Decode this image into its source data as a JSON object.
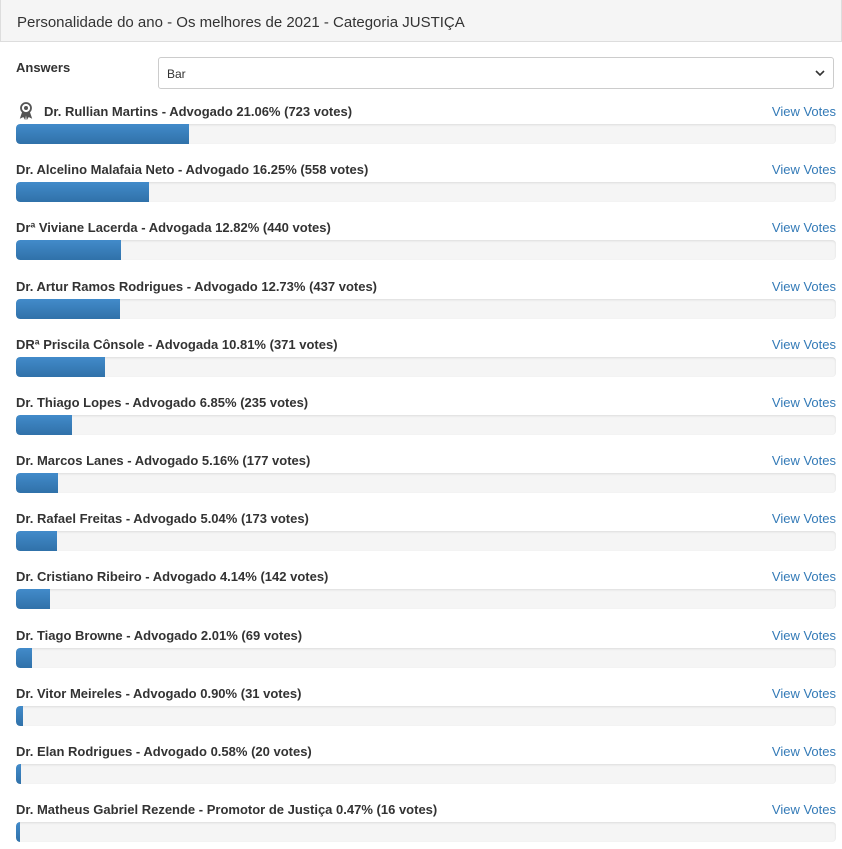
{
  "header": {
    "title": "Personalidade do ano - Os melhores de 2021 - Categoria JUSTIÇA"
  },
  "answers": {
    "label": "Answers",
    "selected": "Bar"
  },
  "items": [
    {
      "name": "Dr. Rullian Martins - Advogado",
      "percent": 21.06,
      "percent_label": "21.06%",
      "votes": "(723 votes)",
      "link": "View Votes"
    },
    {
      "name": "Dr. Alcelino Malafaia Neto - Advogado",
      "percent": 16.25,
      "percent_label": "16.25%",
      "votes": "(558 votes)",
      "link": "View Votes"
    },
    {
      "name": "Drª Viviane Lacerda - Advogada",
      "percent": 12.82,
      "percent_label": "12.82%",
      "votes": "(440 votes)",
      "link": "View Votes"
    },
    {
      "name": "Dr. Artur Ramos Rodrigues - Advogado",
      "percent": 12.73,
      "percent_label": "12.73%",
      "votes": "(437 votes)",
      "link": "View Votes"
    },
    {
      "name": "DRª Priscila Cônsole - Advogada",
      "percent": 10.81,
      "percent_label": "10.81%",
      "votes": "(371 votes)",
      "link": "View Votes"
    },
    {
      "name": "Dr. Thiago Lopes - Advogado",
      "percent": 6.85,
      "percent_label": "6.85%",
      "votes": "(235 votes)",
      "link": "View Votes"
    },
    {
      "name": "Dr. Marcos Lanes - Advogado",
      "percent": 5.16,
      "percent_label": "5.16%",
      "votes": "(177 votes)",
      "link": "View Votes"
    },
    {
      "name": "Dr. Rafael Freitas - Advogado",
      "percent": 5.04,
      "percent_label": "5.04%",
      "votes": "(173 votes)",
      "link": "View Votes"
    },
    {
      "name": "Dr. Cristiano Ribeiro - Advogado",
      "percent": 4.14,
      "percent_label": "4.14%",
      "votes": "(142 votes)",
      "link": "View Votes"
    },
    {
      "name": "Dr. Tiago Browne - Advogado",
      "percent": 2.01,
      "percent_label": "2.01%",
      "votes": "(69 votes)",
      "link": "View Votes"
    },
    {
      "name": "Dr. Vitor Meireles - Advogado",
      "percent": 0.9,
      "percent_label": "0.90%",
      "votes": "(31 votes)",
      "link": "View Votes"
    },
    {
      "name": "Dr. Elan Rodrigues - Advogado",
      "percent": 0.58,
      "percent_label": "0.58%",
      "votes": "(20 votes)",
      "link": "View Votes"
    },
    {
      "name": "Dr. Matheus Gabriel Rezende - Promotor de Justiça",
      "percent": 0.47,
      "percent_label": "0.47%",
      "votes": "(16 votes)",
      "link": "View Votes"
    }
  ]
}
